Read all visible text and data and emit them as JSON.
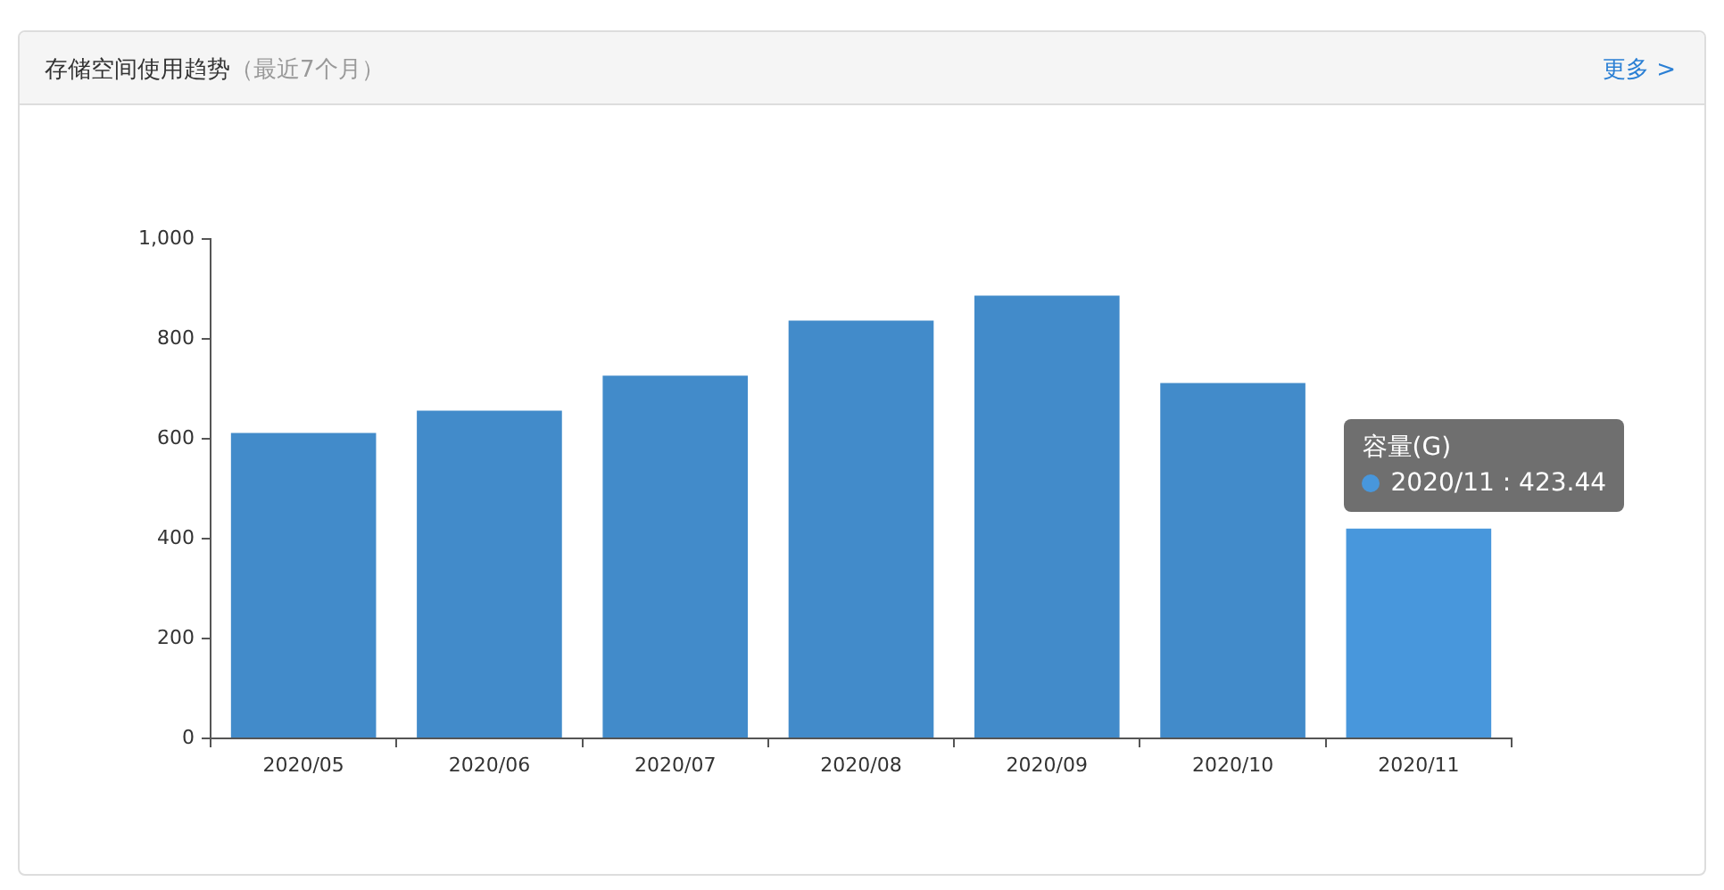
{
  "chart_data": {
    "type": "bar",
    "title": "存储空间使用趋势",
    "subtitle": "（最近7个月）",
    "categories": [
      "2020/05",
      "2020/06",
      "2020/07",
      "2020/08",
      "2020/09",
      "2020/10",
      "2020/11"
    ],
    "series": [
      {
        "name": "容量(G)",
        "colors": [
          "#428bca",
          "#428bca",
          "#428bca",
          "#428bca",
          "#428bca",
          "#428bca",
          "#4897dc"
        ],
        "values": [
          615,
          660,
          730,
          840,
          890,
          715,
          423.44
        ],
        "value_labels": [
          null,
          null,
          null,
          null,
          null,
          null,
          "2020/11 : 423.44"
        ]
      }
    ],
    "ylim": [
      0,
      1000
    ],
    "yticks": [
      0,
      200,
      400,
      600,
      800,
      {
        "value": 1000,
        "label": "1,000"
      }
    ],
    "legend": false,
    "annotations": [
      "更多 >"
    ]
  }
}
